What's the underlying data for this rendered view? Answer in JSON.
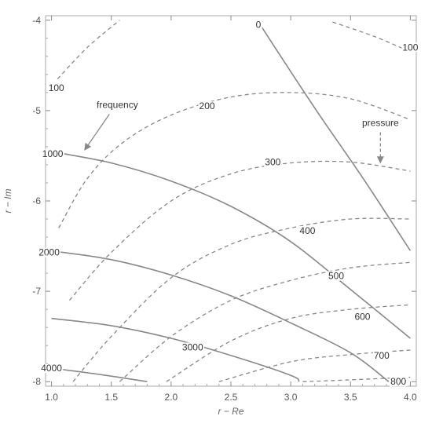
{
  "chart_data": {
    "type": "contour",
    "title": "",
    "xlabel": "r − Re",
    "ylabel": "r − Im",
    "xlim": [
      0.95,
      4.05
    ],
    "ylim": [
      -8.05,
      -3.95
    ],
    "xticks": [
      "1.0",
      "1.5",
      "2.0",
      "2.5",
      "3.0",
      "3.5",
      "4.0"
    ],
    "xtick_values": [
      1.0,
      1.5,
      2.0,
      2.5,
      3.0,
      3.5,
      4.0
    ],
    "yticks": [
      "-4",
      "-5",
      "-6",
      "-7",
      "-8"
    ],
    "ytick_values": [
      -4,
      -5,
      -6,
      -7,
      -8
    ],
    "grid": false,
    "colors": {
      "line": "#888888",
      "frame": "#aaaaaa",
      "text": "#333333"
    },
    "annotations": [
      {
        "text": "frequency",
        "x": 1.55,
        "y": -4.97,
        "arrow_to": [
          1.28,
          -5.43
        ]
      },
      {
        "text": "pressure",
        "x": 3.75,
        "y": -5.17,
        "arrow_to": [
          3.75,
          -5.57
        ]
      }
    ],
    "series": [
      {
        "name": "frequency",
        "style": "solid",
        "contours": [
          {
            "level": "0",
            "label_at": [
              2.73,
              -4.05
            ],
            "points": [
              [
                2.73,
                -4.02
              ],
              [
                3.2,
                -4.97
              ],
              [
                3.6,
                -5.74
              ],
              [
                4.0,
                -6.55
              ]
            ]
          },
          {
            "level": "1000",
            "label_at": [
              1.01,
              -5.48
            ],
            "points": [
              [
                0.98,
                -5.45
              ],
              [
                1.5,
                -5.58
              ],
              [
                2.0,
                -5.78
              ],
              [
                2.5,
                -6.06
              ],
              [
                3.0,
                -6.45
              ],
              [
                3.5,
                -6.98
              ],
              [
                4.0,
                -7.52
              ]
            ]
          },
          {
            "level": "2000",
            "label_at": [
              0.98,
              -6.57
            ],
            "points": [
              [
                0.98,
                -6.55
              ],
              [
                1.5,
                -6.65
              ],
              [
                2.0,
                -6.82
              ],
              [
                2.5,
                -7.05
              ],
              [
                3.0,
                -7.35
              ],
              [
                3.5,
                -7.68
              ],
              [
                3.82,
                -8.0
              ]
            ]
          },
          {
            "level": "3000",
            "label_at": [
              2.18,
              -7.62
            ],
            "points": [
              [
                1.0,
                -7.3
              ],
              [
                1.5,
                -7.38
              ],
              [
                2.0,
                -7.52
              ],
              [
                2.5,
                -7.71
              ],
              [
                3.0,
                -7.93
              ],
              [
                3.07,
                -8.0
              ]
            ]
          },
          {
            "level": "4000",
            "label_at": [
              1.0,
              -7.85
            ],
            "points": [
              [
                1.0,
                -7.85
              ],
              [
                1.4,
                -7.92
              ],
              [
                1.8,
                -8.0
              ]
            ]
          }
        ]
      },
      {
        "name": "pressure",
        "style": "dashed",
        "contours": [
          {
            "level": "100",
            "label_at": [
              1.04,
              -4.75
            ],
            "points": [
              [
                1.05,
                -4.65
              ],
              [
                1.3,
                -4.3
              ],
              [
                1.57,
                -4.0
              ]
            ]
          },
          {
            "level": "100",
            "label_at": [
              4.0,
              -4.3
            ],
            "points": [
              [
                3.35,
                -4.02
              ],
              [
                3.7,
                -4.18
              ],
              [
                4.0,
                -4.35
              ]
            ]
          },
          {
            "level": "200",
            "label_at": [
              2.3,
              -4.95
            ],
            "points": [
              [
                1.06,
                -6.3
              ],
              [
                1.3,
                -5.75
              ],
              [
                1.6,
                -5.35
              ],
              [
                2.0,
                -5.05
              ],
              [
                2.5,
                -4.85
              ],
              [
                3.0,
                -4.8
              ],
              [
                3.5,
                -4.87
              ],
              [
                4.0,
                -5.1
              ]
            ]
          },
          {
            "level": "300",
            "label_at": [
              2.85,
              -5.57
            ],
            "points": [
              [
                1.15,
                -7.1
              ],
              [
                1.5,
                -6.57
              ],
              [
                2.0,
                -6.0
              ],
              [
                2.5,
                -5.7
              ],
              [
                3.0,
                -5.58
              ],
              [
                3.5,
                -5.57
              ],
              [
                4.0,
                -5.67
              ]
            ]
          },
          {
            "level": "400",
            "label_at": [
              3.14,
              -6.33
            ],
            "points": [
              [
                1.18,
                -8.0
              ],
              [
                1.5,
                -7.5
              ],
              [
                2.0,
                -6.85
              ],
              [
                2.5,
                -6.48
              ],
              [
                3.0,
                -6.3
              ],
              [
                3.5,
                -6.2
              ],
              [
                4.0,
                -6.2
              ]
            ]
          },
          {
            "level": "500",
            "label_at": [
              3.38,
              -6.83
            ],
            "points": [
              [
                1.57,
                -8.0
              ],
              [
                2.0,
                -7.5
              ],
              [
                2.5,
                -7.1
              ],
              [
                3.0,
                -6.88
              ],
              [
                3.5,
                -6.74
              ],
              [
                4.0,
                -6.68
              ]
            ]
          },
          {
            "level": "600",
            "label_at": [
              3.6,
              -7.28
            ],
            "points": [
              [
                1.96,
                -8.0
              ],
              [
                2.5,
                -7.55
              ],
              [
                3.0,
                -7.3
              ],
              [
                3.5,
                -7.2
              ],
              [
                4.0,
                -7.15
              ]
            ]
          },
          {
            "level": "700",
            "label_at": [
              3.76,
              -7.71
            ],
            "points": [
              [
                2.4,
                -8.0
              ],
              [
                3.0,
                -7.78
              ],
              [
                3.5,
                -7.7
              ],
              [
                4.0,
                -7.65
              ]
            ]
          },
          {
            "level": "800",
            "label_at": [
              3.9,
              -8.0
            ],
            "points": [
              [
                3.1,
                -8.0
              ],
              [
                3.5,
                -7.98
              ],
              [
                4.0,
                -7.95
              ]
            ]
          }
        ]
      }
    ]
  }
}
